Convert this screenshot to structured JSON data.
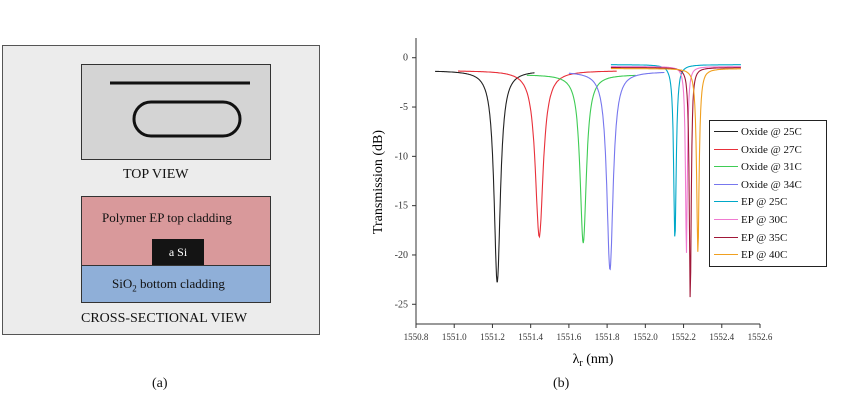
{
  "panel_a": {
    "top_view_label": "TOP VIEW",
    "cladding_top_label": "Polymer EP top cladding",
    "core_label": "a Si",
    "cladding_bottom_prefix": "SiO",
    "cladding_bottom_sub": "2",
    "cladding_bottom_suffix": " bottom cladding",
    "cross_section_label": "CROSS-SECTIONAL VIEW",
    "caption": "(a)"
  },
  "panel_b": {
    "caption": "(b)"
  },
  "chart_data": {
    "type": "line",
    "title": "",
    "xlabel_symbol": "λ",
    "xlabel_sub": "r",
    "xlabel_rest": " (nm)",
    "ylabel": "Transmission (dB)",
    "xlim": [
      1550.8,
      1552.6
    ],
    "ylim": [
      -27,
      2
    ],
    "xticks": [
      1550.8,
      1551.0,
      1551.2,
      1551.4,
      1551.6,
      1551.8,
      1552.0,
      1552.2,
      1552.4,
      1552.6
    ],
    "xtick_labels": [
      "1550.8",
      "1551.0",
      "1551.2",
      "1551.4",
      "1551.6",
      "1551.8",
      "1552.0",
      "1552.2",
      "1552.4",
      "1552.6"
    ],
    "yticks": [
      0,
      -5,
      -10,
      -15,
      -20,
      -25
    ],
    "ytick_labels": [
      "0",
      "-5",
      "-10",
      "-15",
      "-20",
      "-25"
    ],
    "grid": false,
    "legend_position": "right",
    "series": [
      {
        "name": "Oxide @ 25C",
        "color": "#222222",
        "x0": 1550.9,
        "x1": 1551.42,
        "center": 1551.225,
        "base": -1.3,
        "depth": -22.8,
        "width": 0.02
      },
      {
        "name": "Oxide @ 27C",
        "color": "#e8303a",
        "x0": 1551.02,
        "x1": 1551.85,
        "center": 1551.445,
        "base": -1.3,
        "depth": -18.2,
        "width": 0.025
      },
      {
        "name": "Oxide @ 31C",
        "color": "#3fcc55",
        "x0": 1551.38,
        "x1": 1551.95,
        "center": 1551.675,
        "base": -1.7,
        "depth": -18.8,
        "width": 0.02
      },
      {
        "name": "Oxide @ 34C",
        "color": "#7777ee",
        "x0": 1551.6,
        "x1": 1552.1,
        "center": 1551.815,
        "base": -1.4,
        "depth": -21.5,
        "width": 0.02
      },
      {
        "name": "EP @ 25C",
        "color": "#00a8c8",
        "x0": 1551.82,
        "x1": 1552.5,
        "center": 1552.155,
        "base": -0.7,
        "depth": -18.5,
        "width": 0.008
      },
      {
        "name": "EP @ 30C",
        "color": "#f07ad0",
        "x0": 1551.82,
        "x1": 1552.5,
        "center": 1552.215,
        "base": -0.9,
        "depth": -20.0,
        "width": 0.006
      },
      {
        "name": "EP @ 35C",
        "color": "#a01838",
        "x0": 1551.82,
        "x1": 1552.5,
        "center": 1552.235,
        "base": -1.0,
        "depth": -24.7,
        "width": 0.006
      },
      {
        "name": "EP @ 40C",
        "color": "#f0a020",
        "x0": 1551.82,
        "x1": 1552.5,
        "center": 1552.275,
        "base": -1.1,
        "depth": -19.8,
        "width": 0.008
      }
    ]
  }
}
